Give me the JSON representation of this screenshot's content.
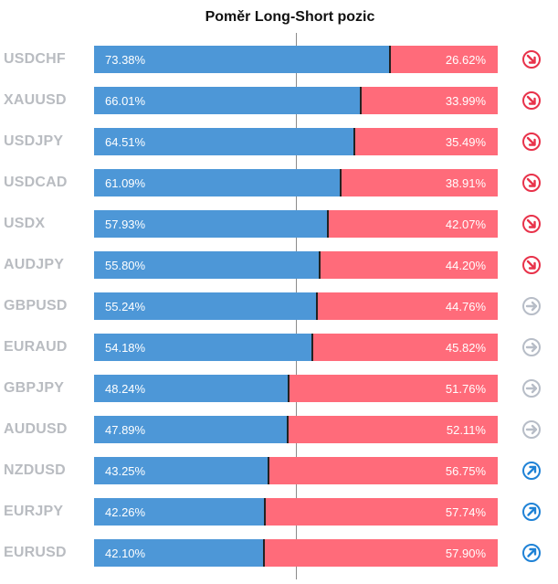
{
  "title": "Poměr Long-Short pozic",
  "colors": {
    "long": "#4d97d7",
    "short": "#ff6b7a",
    "down": "#e8324a",
    "neutral": "#b7bdc7",
    "up": "#1f82d6"
  },
  "chart_data": {
    "type": "bar",
    "stacked": true,
    "orientation": "horizontal",
    "title": "Poměr Long-Short pozic",
    "categories": [
      "USDCHF",
      "XAUUSD",
      "USDJPY",
      "USDCAD",
      "USDX",
      "AUDJPY",
      "GBPUSD",
      "EURAUD",
      "GBPJPY",
      "AUDUSD",
      "NZDUSD",
      "EURJPY",
      "EURUSD"
    ],
    "series": [
      {
        "values": [
          73.38,
          66.01,
          64.51,
          61.09,
          57.93,
          55.8,
          55.24,
          54.18,
          48.24,
          47.89,
          43.25,
          42.26,
          42.1
        ]
      },
      {
        "values": [
          26.62,
          33.99,
          35.49,
          38.91,
          42.07,
          44.2,
          44.76,
          45.82,
          51.76,
          52.11,
          56.75,
          57.74,
          57.9
        ]
      }
    ],
    "xlim": [
      0,
      100
    ],
    "reference_line": 50
  },
  "rows": [
    {
      "symbol": "USDCHF",
      "long": "73.38%",
      "short": "26.62%",
      "signal": "down-arrow-icon"
    },
    {
      "symbol": "XAUUSD",
      "long": "66.01%",
      "short": "33.99%",
      "signal": "down-arrow-icon"
    },
    {
      "symbol": "USDJPY",
      "long": "64.51%",
      "short": "35.49%",
      "signal": "down-arrow-icon"
    },
    {
      "symbol": "USDCAD",
      "long": "61.09%",
      "short": "38.91%",
      "signal": "down-arrow-icon"
    },
    {
      "symbol": "USDX",
      "long": "57.93%",
      "short": "42.07%",
      "signal": "down-arrow-icon"
    },
    {
      "symbol": "AUDJPY",
      "long": "55.80%",
      "short": "44.20%",
      "signal": "down-arrow-icon"
    },
    {
      "symbol": "GBPUSD",
      "long": "55.24%",
      "short": "44.76%",
      "signal": "right-arrow-icon"
    },
    {
      "symbol": "EURAUD",
      "long": "54.18%",
      "short": "45.82%",
      "signal": "right-arrow-icon"
    },
    {
      "symbol": "GBPJPY",
      "long": "48.24%",
      "short": "51.76%",
      "signal": "right-arrow-icon"
    },
    {
      "symbol": "AUDUSD",
      "long": "47.89%",
      "short": "52.11%",
      "signal": "right-arrow-icon"
    },
    {
      "symbol": "NZDUSD",
      "long": "43.25%",
      "short": "56.75%",
      "signal": "up-arrow-icon"
    },
    {
      "symbol": "EURJPY",
      "long": "42.26%",
      "short": "57.74%",
      "signal": "up-arrow-icon"
    },
    {
      "symbol": "EURUSD",
      "long": "42.10%",
      "short": "57.90%",
      "signal": "up-arrow-icon"
    }
  ]
}
